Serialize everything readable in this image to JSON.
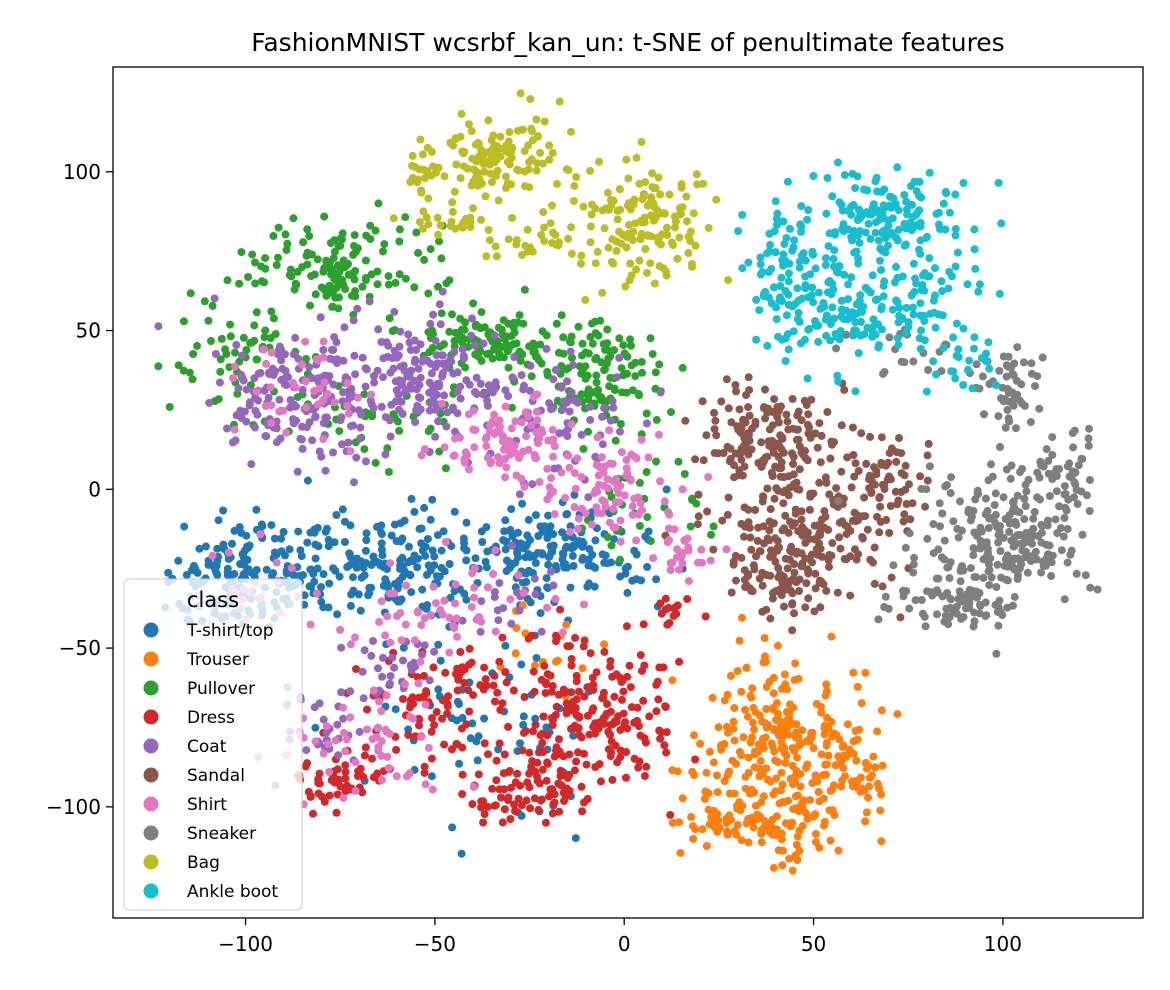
{
  "chart_data": {
    "type": "scatter",
    "title": "FashionMNIST wcsrbf_kan_un: t-SNE of penultimate features",
    "xlabel": "",
    "ylabel": "",
    "xlim": [
      -135,
      137
    ],
    "ylim": [
      -135,
      133
    ],
    "xticks": [
      -100,
      -50,
      0,
      50,
      100
    ],
    "yticks": [
      -100,
      -50,
      0,
      50,
      100
    ],
    "xtick_labels": [
      "−100",
      "−50",
      "0",
      "50",
      "100"
    ],
    "ytick_labels": [
      "−100",
      "−50",
      "0",
      "50",
      "100"
    ],
    "grid": false,
    "legend": {
      "title": "class",
      "placement": "lower-left"
    },
    "series": [
      {
        "name": "T-shirt/top",
        "color": "#1f77b4",
        "clusters": [
          {
            "center": [
              -95,
              -25
            ],
            "spread": [
              16,
              12
            ],
            "count": 160
          },
          {
            "center": [
              -60,
              -25
            ],
            "spread": [
              16,
              12
            ],
            "count": 150
          },
          {
            "center": [
              -20,
              -20
            ],
            "spread": [
              18,
              10
            ],
            "count": 170
          },
          {
            "center": [
              -38,
              -75
            ],
            "spread": [
              20,
              20
            ],
            "count": 60
          },
          {
            "center": [
              -110,
              -35
            ],
            "spread": [
              8,
              10
            ],
            "count": 30
          }
        ]
      },
      {
        "name": "Trouser",
        "color": "#ff7f0e",
        "clusters": [
          {
            "center": [
              42,
              -80
            ],
            "spread": [
              16,
              18
            ],
            "count": 240
          },
          {
            "center": [
              35,
              -105
            ],
            "spread": [
              14,
              8
            ],
            "count": 100
          },
          {
            "center": [
              62,
              -88
            ],
            "spread": [
              6,
              8
            ],
            "count": 40
          },
          {
            "center": [
              -20,
              -55
            ],
            "spread": [
              12,
              12
            ],
            "count": 15
          }
        ]
      },
      {
        "name": "Pullover",
        "color": "#2ca02c",
        "clusters": [
          {
            "center": [
              -75,
              70
            ],
            "spread": [
              16,
              10
            ],
            "count": 140
          },
          {
            "center": [
              -35,
              47
            ],
            "spread": [
              14,
              7
            ],
            "count": 110
          },
          {
            "center": [
              -5,
              35
            ],
            "spread": [
              10,
              12
            ],
            "count": 120
          },
          {
            "center": [
              -60,
              25
            ],
            "spread": [
              22,
              10
            ],
            "count": 60
          },
          {
            "center": [
              -100,
              40
            ],
            "spread": [
              14,
              12
            ],
            "count": 60
          },
          {
            "center": [
              5,
              -5
            ],
            "spread": [
              10,
              10
            ],
            "count": 30
          }
        ]
      },
      {
        "name": "Dress",
        "color": "#d62728",
        "clusters": [
          {
            "center": [
              -10,
              -70
            ],
            "spread": [
              14,
              16
            ],
            "count": 200
          },
          {
            "center": [
              -25,
              -95
            ],
            "spread": [
              12,
              7
            ],
            "count": 80
          },
          {
            "center": [
              -55,
              -70
            ],
            "spread": [
              12,
              12
            ],
            "count": 60
          },
          {
            "center": [
              -75,
              -92
            ],
            "spread": [
              8,
              6
            ],
            "count": 50
          },
          {
            "center": [
              -40,
              -60
            ],
            "spread": [
              8,
              8
            ],
            "count": 30
          },
          {
            "center": [
              12,
              -40
            ],
            "spread": [
              5,
              5
            ],
            "count": 15
          }
        ]
      },
      {
        "name": "Coat",
        "color": "#9467bd",
        "clusters": [
          {
            "center": [
              -85,
              30
            ],
            "spread": [
              16,
              14
            ],
            "count": 170
          },
          {
            "center": [
              -55,
              35
            ],
            "spread": [
              14,
              12
            ],
            "count": 150
          },
          {
            "center": [
              -20,
              25
            ],
            "spread": [
              16,
              14
            ],
            "count": 80
          },
          {
            "center": [
              -80,
              -75
            ],
            "spread": [
              8,
              8
            ],
            "count": 30
          },
          {
            "center": [
              -60,
              -55
            ],
            "spread": [
              8,
              8
            ],
            "count": 30
          },
          {
            "center": [
              -30,
              -35
            ],
            "spread": [
              10,
              8
            ],
            "count": 20
          }
        ]
      },
      {
        "name": "Sandal",
        "color": "#8c564b",
        "clusters": [
          {
            "center": [
              38,
              15
            ],
            "spread": [
              12,
              10
            ],
            "count": 160
          },
          {
            "center": [
              48,
              -15
            ],
            "spread": [
              14,
              14
            ],
            "count": 180
          },
          {
            "center": [
              68,
              3
            ],
            "spread": [
              8,
              10
            ],
            "count": 70
          },
          {
            "center": [
              40,
              -30
            ],
            "spread": [
              8,
              6
            ],
            "count": 50
          }
        ]
      },
      {
        "name": "Shirt",
        "color": "#e377c2",
        "clusters": [
          {
            "center": [
              -30,
              15
            ],
            "spread": [
              12,
              8
            ],
            "count": 90
          },
          {
            "center": [
              -5,
              0
            ],
            "spread": [
              14,
              12
            ],
            "count": 90
          },
          {
            "center": [
              -85,
              30
            ],
            "spread": [
              14,
              10
            ],
            "count": 40
          },
          {
            "center": [
              -45,
              -40
            ],
            "spread": [
              18,
              12
            ],
            "count": 60
          },
          {
            "center": [
              -70,
              -80
            ],
            "spread": [
              14,
              12
            ],
            "count": 50
          },
          {
            "center": [
              15,
              -20
            ],
            "spread": [
              6,
              6
            ],
            "count": 25
          },
          {
            "center": [
              -100,
              -30
            ],
            "spread": [
              10,
              8
            ],
            "count": 20
          }
        ]
      },
      {
        "name": "Sneaker",
        "color": "#7f7f7f",
        "clusters": [
          {
            "center": [
              100,
              -15
            ],
            "spread": [
              14,
              14
            ],
            "count": 220
          },
          {
            "center": [
              85,
              -35
            ],
            "spread": [
              10,
              6
            ],
            "count": 80
          },
          {
            "center": [
              102,
              32
            ],
            "spread": [
              8,
              8
            ],
            "count": 50
          },
          {
            "center": [
              115,
              5
            ],
            "spread": [
              6,
              8
            ],
            "count": 40
          },
          {
            "center": [
              75,
              45
            ],
            "spread": [
              10,
              10
            ],
            "count": 20
          }
        ]
      },
      {
        "name": "Bag",
        "color": "#bcbd22",
        "clusters": [
          {
            "center": [
              -35,
              105
            ],
            "spread": [
              12,
              8
            ],
            "count": 120
          },
          {
            "center": [
              5,
              85
            ],
            "spread": [
              12,
              14
            ],
            "count": 150
          },
          {
            "center": [
              -45,
              84
            ],
            "spread": [
              8,
              3
            ],
            "count": 25
          },
          {
            "center": [
              -22,
              78
            ],
            "spread": [
              8,
              4
            ],
            "count": 25
          },
          {
            "center": [
              -53,
              100
            ],
            "spread": [
              4,
              6
            ],
            "count": 15
          }
        ]
      },
      {
        "name": "Ankle boot",
        "color": "#17becf",
        "clusters": [
          {
            "center": [
              70,
              85
            ],
            "spread": [
              12,
              10
            ],
            "count": 150
          },
          {
            "center": [
              55,
              55
            ],
            "spread": [
              14,
              12
            ],
            "count": 140
          },
          {
            "center": [
              80,
              60
            ],
            "spread": [
              10,
              10
            ],
            "count": 60
          },
          {
            "center": [
              45,
              75
            ],
            "spread": [
              10,
              10
            ],
            "count": 60
          },
          {
            "center": [
              90,
              40
            ],
            "spread": [
              6,
              6
            ],
            "count": 20
          }
        ]
      }
    ]
  }
}
